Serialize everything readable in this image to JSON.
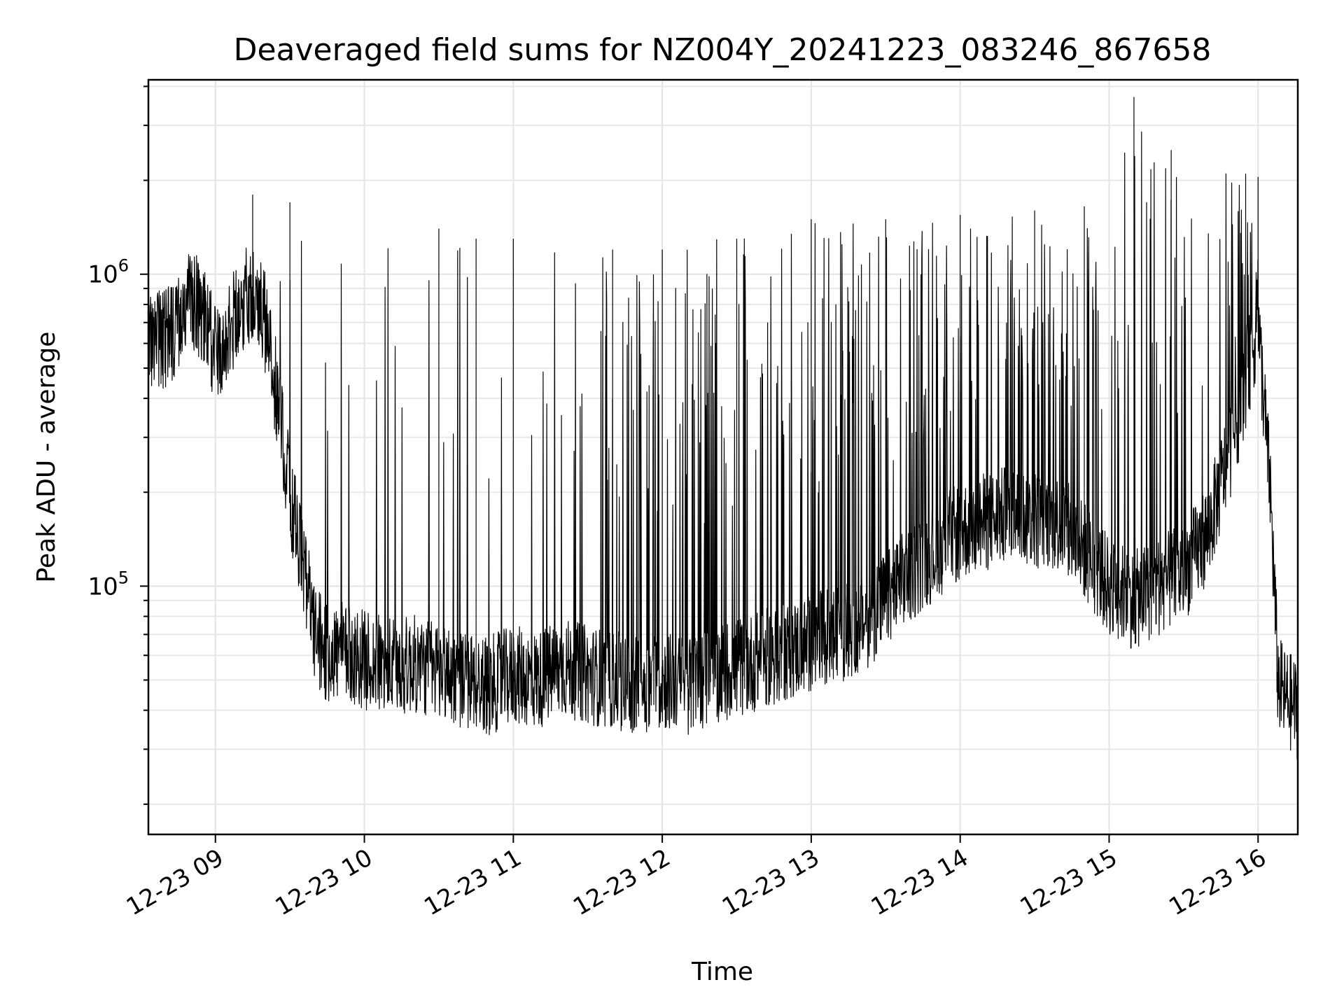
{
  "chart_data": {
    "type": "line",
    "title": "Deaveraged field sums for NZ004Y_20241223_083246_867658",
    "xlabel": "Time",
    "ylabel": "Peak ADU - average",
    "yscale": "log",
    "xlim": [
      "2024-12-23 08:33",
      "2024-12-23 16:16"
    ],
    "ylim": [
      16000,
      4200000
    ],
    "grid": true,
    "line_color": "#000000",
    "x_ticks": [
      {
        "value": "2024-12-23 09:00",
        "label": "12-23 09"
      },
      {
        "value": "2024-12-23 10:00",
        "label": "12-23 10"
      },
      {
        "value": "2024-12-23 11:00",
        "label": "12-23 11"
      },
      {
        "value": "2024-12-23 12:00",
        "label": "12-23 12"
      },
      {
        "value": "2024-12-23 13:00",
        "label": "12-23 13"
      },
      {
        "value": "2024-12-23 14:00",
        "label": "12-23 14"
      },
      {
        "value": "2024-12-23 15:00",
        "label": "12-23 15"
      },
      {
        "value": "2024-12-23 16:00",
        "label": "12-23 16"
      }
    ],
    "y_ticks": [
      {
        "value": 100000,
        "label": "10",
        "exponent": "5"
      },
      {
        "value": 1000000,
        "label": "10",
        "exponent": "6"
      }
    ],
    "series": [
      {
        "x": [
          "2024-12-23 08:33",
          "2024-12-23 08:40",
          "2024-12-23 08:45",
          "2024-12-23 08:50",
          "2024-12-23 08:55",
          "2024-12-23 09:00",
          "2024-12-23 09:05",
          "2024-12-23 09:10",
          "2024-12-23 09:15",
          "2024-12-23 09:20",
          "2024-12-23 09:25",
          "2024-12-23 09:30",
          "2024-12-23 09:35",
          "2024-12-23 09:40",
          "2024-12-23 09:45",
          "2024-12-23 09:50",
          "2024-12-23 10:00",
          "2024-12-23 10:10",
          "2024-12-23 10:20",
          "2024-12-23 10:30",
          "2024-12-23 10:40",
          "2024-12-23 10:50",
          "2024-12-23 11:00",
          "2024-12-23 11:10",
          "2024-12-23 11:20",
          "2024-12-23 11:30",
          "2024-12-23 11:40",
          "2024-12-23 11:50",
          "2024-12-23 12:00",
          "2024-12-23 12:10",
          "2024-12-23 12:20",
          "2024-12-23 12:30",
          "2024-12-23 12:40",
          "2024-12-23 12:50",
          "2024-12-23 13:00",
          "2024-12-23 13:10",
          "2024-12-23 13:20",
          "2024-12-23 13:30",
          "2024-12-23 13:40",
          "2024-12-23 13:50",
          "2024-12-23 14:00",
          "2024-12-23 14:10",
          "2024-12-23 14:20",
          "2024-12-23 14:30",
          "2024-12-23 14:40",
          "2024-12-23 14:50",
          "2024-12-23 15:00",
          "2024-12-23 15:10",
          "2024-12-23 15:20",
          "2024-12-23 15:30",
          "2024-12-23 15:40",
          "2024-12-23 15:50",
          "2024-12-23 16:00",
          "2024-12-23 16:05",
          "2024-12-23 16:08",
          "2024-12-23 16:10",
          "2024-12-23 16:16"
        ],
        "values": [
          600000,
          620000,
          680000,
          850000,
          750000,
          550000,
          650000,
          800000,
          900000,
          700000,
          400000,
          200000,
          120000,
          70000,
          60000,
          62000,
          58000,
          55000,
          56000,
          54000,
          50000,
          48000,
          52000,
          50000,
          55000,
          52000,
          50000,
          48000,
          50000,
          48000,
          52000,
          55000,
          58000,
          62000,
          65000,
          70000,
          75000,
          90000,
          110000,
          130000,
          150000,
          160000,
          170000,
          165000,
          160000,
          130000,
          100000,
          90000,
          100000,
          110000,
          150000,
          300000,
          700000,
          200000,
          50000,
          45000,
          40000
        ],
        "upper_spikes": [
          [
            "2024-12-23 09:15",
            1800000
          ],
          [
            "2024-12-23 09:30",
            1700000
          ],
          [
            "2024-12-23 10:30",
            1400000
          ],
          [
            "2024-12-23 10:45",
            1300000
          ],
          [
            "2024-12-23 11:00",
            1300000
          ],
          [
            "2024-12-23 11:40",
            1200000
          ],
          [
            "2024-12-23 12:00",
            1200000
          ],
          [
            "2024-12-23 12:30",
            1300000
          ],
          [
            "2024-12-23 13:00",
            1500000
          ],
          [
            "2024-12-23 13:30",
            1500000
          ],
          [
            "2024-12-23 14:00",
            1550000
          ],
          [
            "2024-12-23 14:30",
            1600000
          ],
          [
            "2024-12-23 14:50",
            1650000
          ],
          [
            "2024-12-23 15:10",
            3700000
          ],
          [
            "2024-12-23 15:25",
            2500000
          ],
          [
            "2024-12-23 15:55",
            2100000
          ],
          [
            "2024-12-23 16:00",
            2050000
          ]
        ]
      }
    ]
  }
}
